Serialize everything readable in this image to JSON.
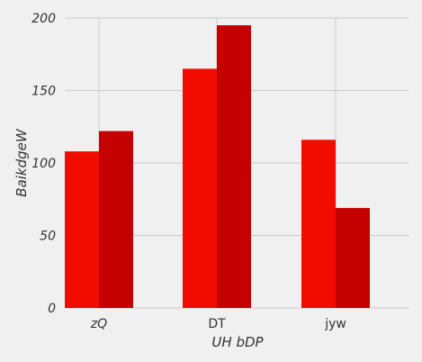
{
  "chart_data": {
    "type": "bar",
    "categories": [
      "zQ",
      "DT",
      "jyw"
    ],
    "category_italic": [
      true,
      false,
      false
    ],
    "series": [
      {
        "values": [
          108,
          165,
          116
        ],
        "color": "#f20c00"
      },
      {
        "values": [
          122,
          195,
          69
        ],
        "color": "#c40000"
      }
    ],
    "xlabel": "UH  bDP",
    "ylabel": "BaikdgeW",
    "ylim": [
      0,
      200
    ],
    "yticks": [
      0,
      50,
      100,
      150,
      200
    ],
    "grid": true,
    "background": "#f0f0f0",
    "grid_color": "#cbcbcb"
  }
}
